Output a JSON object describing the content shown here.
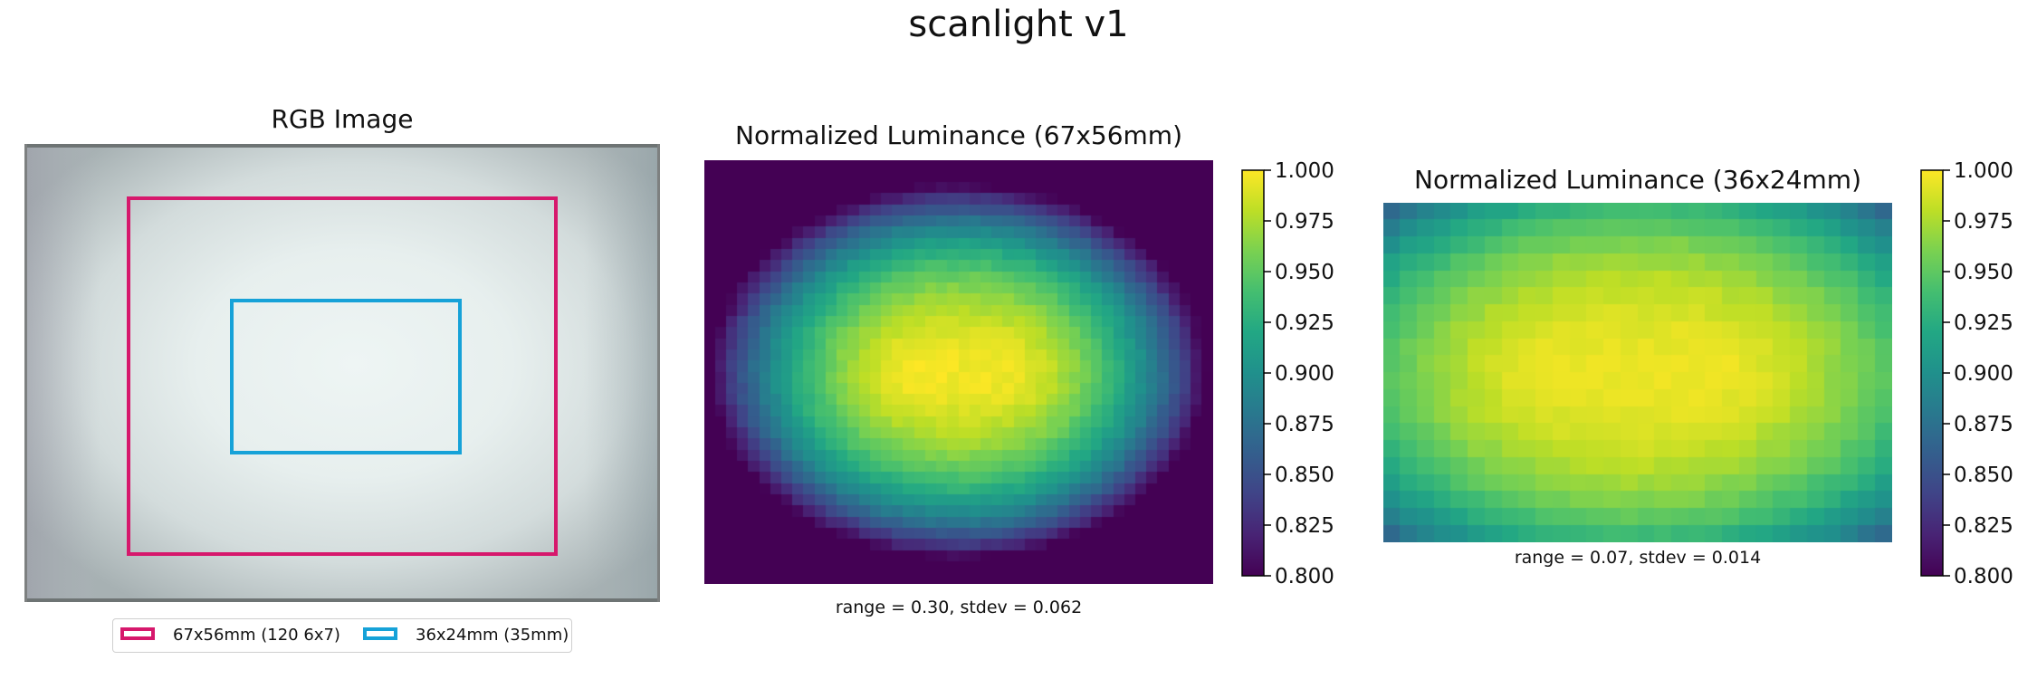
{
  "title": "scanlight v1",
  "chart_data": [
    {
      "type": "image",
      "title": "RGB Image",
      "overlays": [
        {
          "name": "67x56mm (120 6x7)",
          "color": "#d6186c"
        },
        {
          "name": "36x24mm (35mm)",
          "color": "#16a2d8"
        }
      ],
      "legend": {
        "placement": "lower-center",
        "items": [
          "67x56mm (120 6x7)",
          "36x24mm (35mm)"
        ]
      }
    },
    {
      "type": "heatmap",
      "title": "Normalized Luminance (67x56mm)",
      "colormap": "viridis",
      "vmin": 0.8,
      "vmax": 1.0,
      "grid_cols": 46,
      "grid_rows": 38,
      "colorbar_ticks": [
        "0.800",
        "0.825",
        "0.850",
        "0.875",
        "0.900",
        "0.925",
        "0.950",
        "0.975",
        "1.000"
      ],
      "stats_text": "range = 0.30, stdev = 0.062",
      "range": 0.3,
      "stdev": 0.062
    },
    {
      "type": "heatmap",
      "title": "Normalized Luminance (36x24mm)",
      "colormap": "viridis",
      "vmin": 0.8,
      "vmax": 1.0,
      "grid_cols": 30,
      "grid_rows": 20,
      "colorbar_ticks": [
        "0.800",
        "0.825",
        "0.850",
        "0.875",
        "0.900",
        "0.925",
        "0.950",
        "0.975",
        "1.000"
      ],
      "stats_text": "range = 0.07, stdev = 0.014",
      "range": 0.07,
      "stdev": 0.014
    }
  ]
}
